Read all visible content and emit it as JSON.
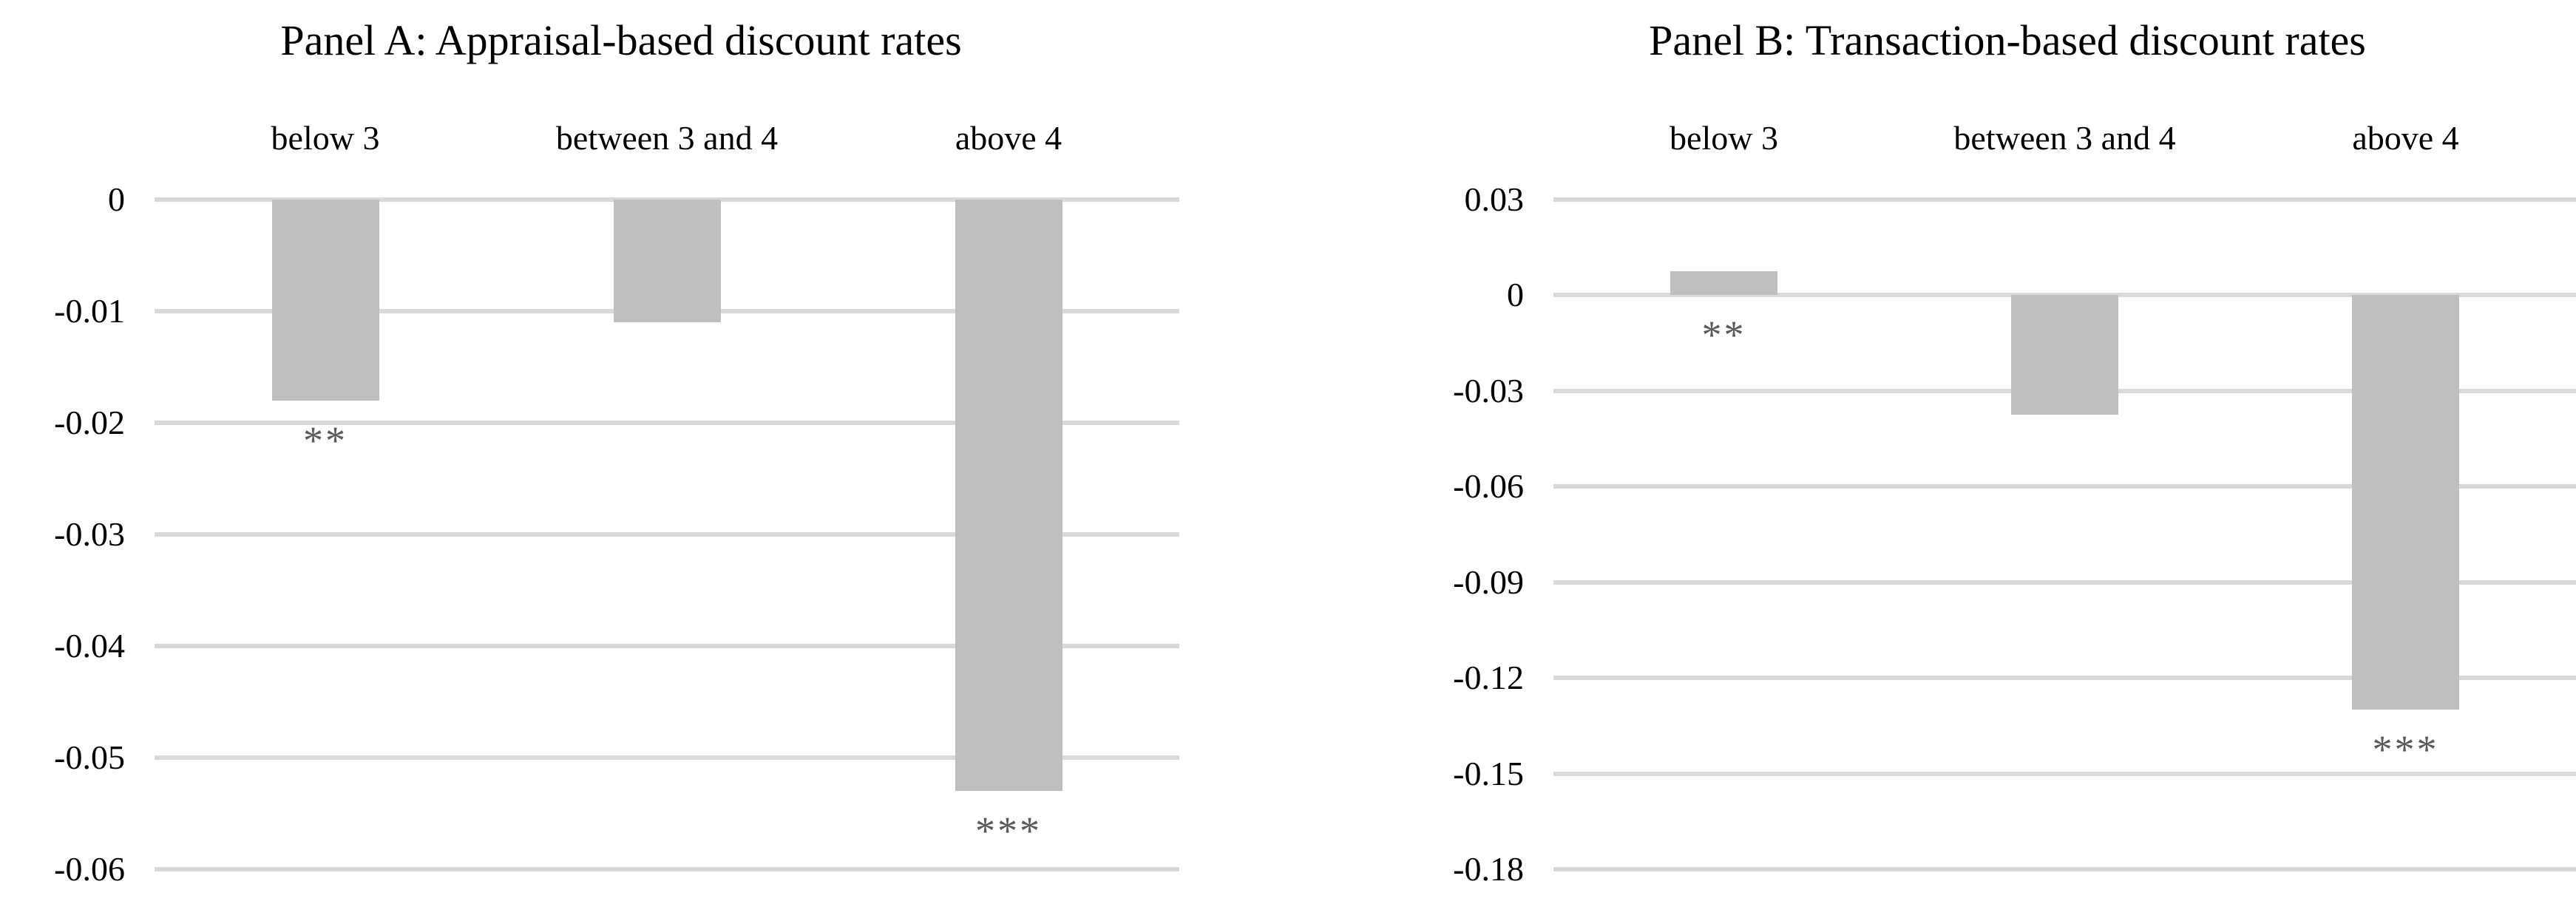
{
  "colors": {
    "background": "#ffffff",
    "bar": "#bfbfbf",
    "gridline": "#d9d9d9",
    "significance": "#5a5a5a",
    "text": "#000000"
  },
  "chart_data": [
    {
      "type": "bar",
      "panel": "A",
      "title": "Panel A: Appraisal-based discount rates",
      "categories": [
        "below 3",
        "between 3 and 4",
        "above 4"
      ],
      "values": [
        -0.018,
        -0.011,
        -0.053
      ],
      "significance": [
        "**",
        "",
        "***"
      ],
      "yticks": [
        0,
        -0.01,
        -0.02,
        -0.03,
        -0.04,
        -0.05,
        -0.06
      ],
      "ytick_labels": [
        "0",
        "-0.01",
        "-0.02",
        "-0.03",
        "-0.04",
        "-0.05",
        "-0.06"
      ],
      "ylim": [
        -0.06,
        0
      ],
      "xlabel": "",
      "ylabel": "",
      "grid": true,
      "legend": "none",
      "bar_color": "#bfbfbf"
    },
    {
      "type": "bar",
      "panel": "B",
      "title": "Panel B: Transaction-based discount rates",
      "categories": [
        "below 3",
        "between 3 and 4",
        "above 4"
      ],
      "values": [
        0.0075,
        -0.0375,
        -0.13
      ],
      "significance": [
        "**",
        "",
        "***"
      ],
      "yticks": [
        0.03,
        0,
        -0.03,
        -0.06,
        -0.09,
        -0.12,
        -0.15,
        -0.18
      ],
      "ytick_labels": [
        "0.03",
        "0",
        "-0.03",
        "-0.06",
        "-0.09",
        "-0.12",
        "-0.15",
        "-0.18"
      ],
      "ylim": [
        -0.18,
        0.03
      ],
      "xlabel": "",
      "ylabel": "",
      "grid": true,
      "legend": "none",
      "bar_color": "#bfbfbf"
    }
  ]
}
